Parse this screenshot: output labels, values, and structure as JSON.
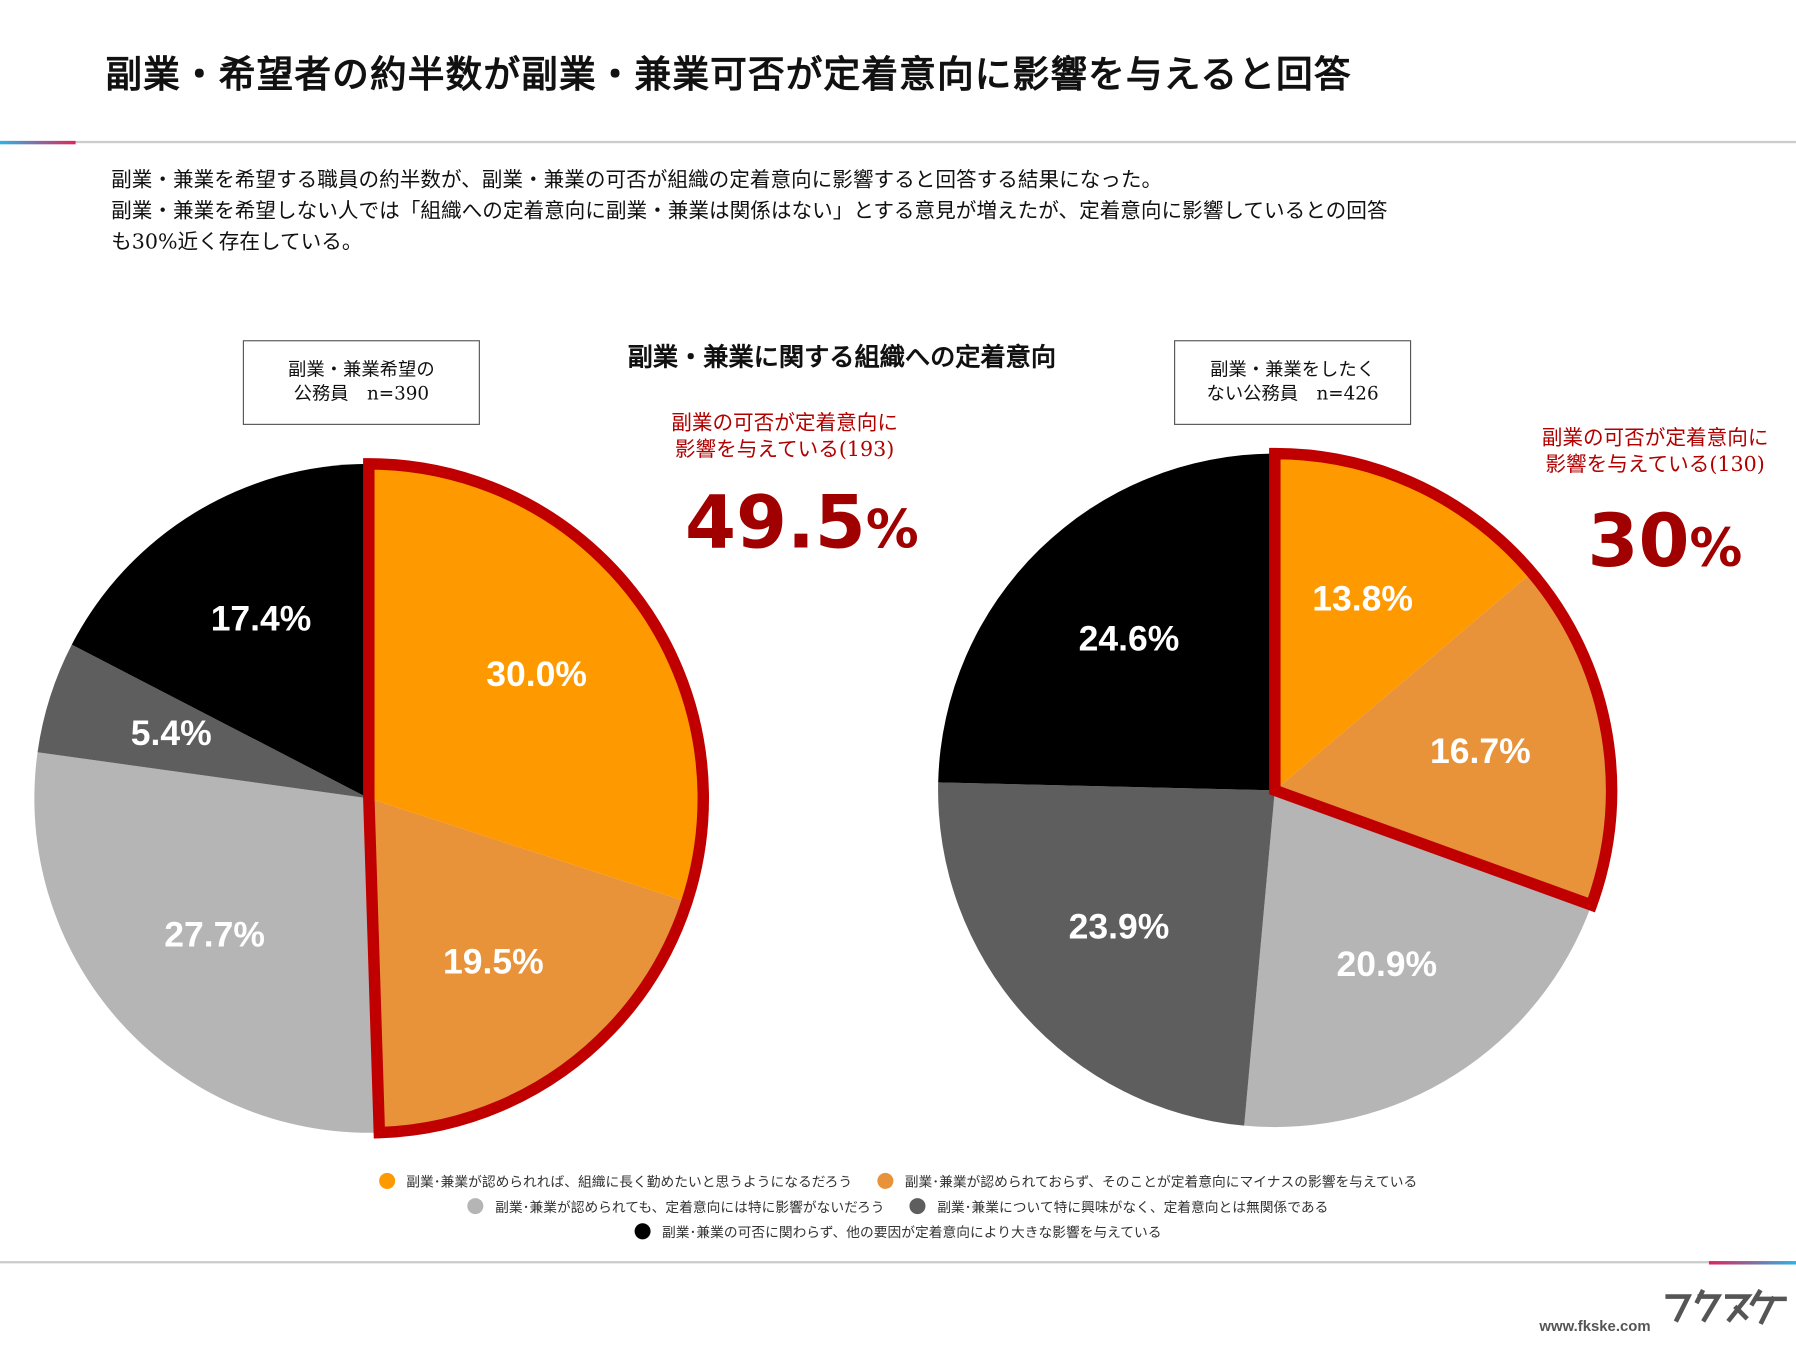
{
  "title": "副業・希望者の約半数が副業・兼業可否が定着意向に影響を与えると回答",
  "description": [
    "副業・兼業を希望する職員の約半数が、副業・兼業の可否が組織の定着意向に影響すると回答する結果になった。",
    "副業・兼業を希望しない人では「組織への定着意向に副業・兼業は関係はない」とする意見が増えたが、定着意向に影響しているとの回答",
    "も30%近く存在している。"
  ],
  "chart_data": [
    {
      "type": "pie",
      "title": "副業・兼業に関する組織への定着意向",
      "group_label": [
        "副業・兼業希望の",
        "公務員　n=390"
      ],
      "values": [
        30.0,
        19.5,
        27.7,
        5.4,
        17.4
      ],
      "labels": [
        "30.0%",
        "19.5%",
        "27.7%",
        "5.4%",
        "17.4%"
      ],
      "highlight_note": [
        "副業の可否が定着意向に",
        "影響を与えている(193)"
      ],
      "highlight_value": "49.5",
      "highlight_unit": "%"
    },
    {
      "type": "pie",
      "group_label": [
        "副業・兼業をしたく",
        "ない公務員　n=426"
      ],
      "values": [
        13.8,
        16.7,
        20.9,
        23.9,
        24.6
      ],
      "labels": [
        "13.8%",
        "16.7%",
        "20.9%",
        "23.9%",
        "24.6%"
      ],
      "highlight_note": [
        "副業の可否が定着意向に",
        "影響を与えている(130)"
      ],
      "highlight_value": "30",
      "highlight_unit": "%"
    }
  ],
  "legend": [
    {
      "label": "副業･兼業が認められれば、組織に長く勤めたいと思うようになるだろう",
      "color": "#ff9900"
    },
    {
      "label": "副業･兼業が認められておらず、そのことが定着意向にマイナスの影響を与えている",
      "color": "#e8923a"
    },
    {
      "label": "副業･兼業が認められても、定着意向には特に影響がないだろう",
      "color": "#b5b5b5"
    },
    {
      "label": "副業･兼業について特に興味がなく、定着意向とは無関係である",
      "color": "#5e5e5e"
    },
    {
      "label": "副業･兼業の可否に関わらず、他の要因が定着意向により大きな影響を与えている",
      "color": "#000000"
    }
  ],
  "highlight_color": "#c00000",
  "footer": {
    "url": "www.fkske.com",
    "logo": "フクスケ"
  }
}
